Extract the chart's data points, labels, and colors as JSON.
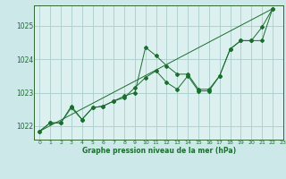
{
  "background_color": "#cce8e8",
  "plot_bg_color": "#ddf0f0",
  "grid_color": "#aacccc",
  "line_color": "#1a6e2e",
  "xlabel": "Graphe pression niveau de la mer (hPa)",
  "xlim": [
    -0.5,
    23
  ],
  "ylim": [
    1021.6,
    1025.6
  ],
  "yticks": [
    1022,
    1023,
    1024,
    1025
  ],
  "xticks": [
    0,
    1,
    2,
    3,
    4,
    5,
    6,
    7,
    8,
    9,
    10,
    11,
    12,
    13,
    14,
    15,
    16,
    17,
    18,
    19,
    20,
    21,
    22,
    23
  ],
  "series1_x": [
    0,
    1,
    2,
    3,
    4,
    5,
    6,
    7,
    8,
    9,
    10,
    11,
    12,
    13,
    14,
    15,
    16,
    17,
    18,
    19,
    20,
    21,
    22
  ],
  "series1_y": [
    1021.85,
    1022.1,
    1022.1,
    1022.6,
    1022.2,
    1022.55,
    1022.6,
    1022.75,
    1022.9,
    1023.0,
    1024.35,
    1024.1,
    1023.8,
    1023.55,
    1023.55,
    1023.1,
    1023.1,
    1023.5,
    1024.3,
    1024.55,
    1024.55,
    1024.95,
    1025.5
  ],
  "series2_x": [
    0,
    1,
    2,
    3,
    4,
    5,
    6,
    7,
    8,
    9,
    10,
    11,
    12,
    13,
    14,
    15,
    16,
    17,
    18,
    19,
    20,
    21,
    22
  ],
  "series2_y": [
    1021.85,
    1022.1,
    1022.1,
    1022.55,
    1022.2,
    1022.55,
    1022.6,
    1022.75,
    1022.85,
    1023.15,
    1023.45,
    1023.65,
    1023.3,
    1023.1,
    1023.5,
    1023.05,
    1023.05,
    1023.5,
    1024.3,
    1024.55,
    1024.55,
    1024.55,
    1025.5
  ],
  "trend_x": [
    0,
    22
  ],
  "trend_y": [
    1021.85,
    1025.5
  ]
}
